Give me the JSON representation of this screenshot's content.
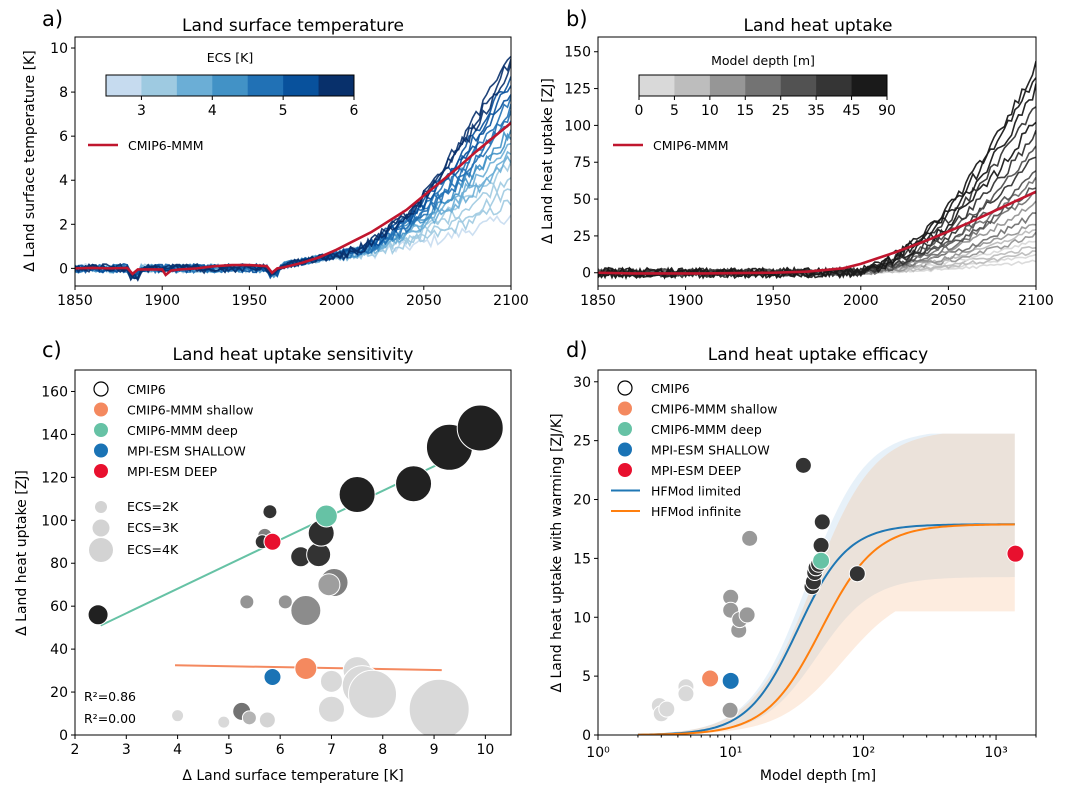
{
  "chart_data": [
    {
      "panel": "a)",
      "type": "line",
      "title": "Land surface temperature",
      "xlabel": "",
      "ylabel": "Δ Land surface temperature [K]",
      "xlim": [
        1850,
        2100
      ],
      "ylim": [
        -0.8,
        10.5
      ],
      "xticks": [
        1850,
        1900,
        1950,
        2000,
        2050,
        2100
      ],
      "yticks": [
        0,
        2,
        4,
        6,
        8,
        10
      ],
      "colorbar": {
        "title": "ECS [K]",
        "ticks": [
          "3",
          "4",
          "5",
          "6"
        ],
        "range": [
          2.5,
          6
        ],
        "colors": [
          "#c6dbef",
          "#9ecae1",
          "#6baed6",
          "#4292c6",
          "#2171b5",
          "#08519c",
          "#08306b"
        ]
      },
      "legend": [
        "CMIP6-MMM"
      ],
      "mmm_color": "#c0162e",
      "mmm": {
        "x": [
          1850,
          1860,
          1870,
          1880,
          1883,
          1886,
          1890,
          1900,
          1902,
          1905,
          1910,
          1920,
          1930,
          1940,
          1950,
          1960,
          1963,
          1966,
          1970,
          1980,
          1990,
          2000,
          2010,
          2020,
          2030,
          2040,
          2050,
          2060,
          2070,
          2080,
          2090,
          2100
        ],
        "y": [
          0,
          0.02,
          0,
          0.02,
          -0.25,
          -0.05,
          -0.05,
          -0.05,
          -0.3,
          -0.1,
          -0.05,
          0,
          0.1,
          0.15,
          0.15,
          0.1,
          -0.2,
          0,
          0.05,
          0.25,
          0.5,
          0.85,
          1.25,
          1.65,
          2.15,
          2.65,
          3.3,
          3.95,
          4.6,
          5.3,
          5.95,
          6.6
        ]
      },
      "models_final_values": [
        2.4,
        3.0,
        3.6,
        4.2,
        4.7,
        5.0,
        5.3,
        5.6,
        6.0,
        6.3,
        6.7,
        7.0,
        7.3,
        7.7,
        8.1,
        8.5,
        8.8,
        9.2,
        9.5,
        9.8
      ],
      "models_ecs": [
        2.3,
        2.6,
        2.8,
        3.0,
        3.1,
        3.3,
        3.5,
        3.7,
        4.0,
        4.2,
        4.4,
        4.6,
        4.8,
        5.0,
        5.2,
        5.4,
        5.5,
        5.7,
        5.8,
        5.9
      ]
    },
    {
      "panel": "b)",
      "type": "line",
      "title": "Land heat uptake",
      "xlabel": "",
      "ylabel": "Δ Land heat uptake [ZJ]",
      "xlim": [
        1850,
        2100
      ],
      "ylim": [
        -9,
        160
      ],
      "xticks": [
        1850,
        1900,
        1950,
        2000,
        2050,
        2100
      ],
      "yticks": [
        0,
        25,
        50,
        75,
        100,
        125,
        150
      ],
      "colorbar": {
        "title": "Model depth [m]",
        "ticks": [
          "0",
          "5",
          "10",
          "15",
          "25",
          "35",
          "45",
          "90"
        ],
        "colors": [
          "#d9d9d9",
          "#bdbdbd",
          "#969696",
          "#737373",
          "#525252",
          "#353535",
          "#1a1a1a"
        ]
      },
      "legend": [
        "CMIP6-MMM"
      ],
      "mmm_color": "#c0162e",
      "mmm": {
        "x": [
          1850,
          1870,
          1890,
          1910,
          1930,
          1950,
          1970,
          1990,
          2000,
          2010,
          2020,
          2030,
          2040,
          2050,
          2060,
          2070,
          2080,
          2090,
          2100
        ],
        "y": [
          0,
          -0.5,
          -0.5,
          -0.5,
          -0.2,
          0,
          0.8,
          3,
          6,
          10,
          14,
          18.5,
          23,
          28,
          33,
          38.5,
          44,
          49.5,
          55
        ]
      },
      "models_final_values": [
        8,
        12,
        14,
        18,
        22,
        26,
        30,
        34,
        40,
        48,
        55,
        60,
        65,
        70,
        80,
        85,
        95,
        105,
        115,
        125,
        135,
        142
      ],
      "models_depth_class": [
        0,
        0,
        1,
        1,
        0,
        2,
        1,
        2,
        3,
        2,
        3,
        4,
        3,
        4,
        5,
        4,
        5,
        6,
        5,
        6,
        6,
        6
      ]
    },
    {
      "panel": "c)",
      "type": "scatter",
      "title": "Land heat uptake sensitivity",
      "xlabel": "Δ Land surface temperature [K]",
      "ylabel": "Δ Land heat uptake [ZJ]",
      "xlim": [
        2,
        10.5
      ],
      "ylim": [
        0,
        170
      ],
      "xticks": [
        2,
        3,
        4,
        5,
        6,
        7,
        8,
        9,
        10
      ],
      "yticks": [
        0,
        20,
        40,
        60,
        80,
        100,
        120,
        140,
        160
      ],
      "legend": [
        "CMIP6",
        "CMIP6-MMM shallow",
        "CMIP6-MMM deep",
        "MPI-ESM SHALLOW",
        "MPI-ESM DEEP"
      ],
      "size_legend": [
        "ECS=2K",
        "ECS=3K",
        "ECS=4K"
      ],
      "colors": {
        "shallow": "#f4895f",
        "deep": "#66c2a5",
        "mpi_shallow": "#1a73b5",
        "mpi_deep": "#e8102e"
      },
      "points": [
        {
          "x": 2.45,
          "y": 56,
          "s": 10,
          "g": 0.13
        },
        {
          "x": 5.8,
          "y": 104,
          "s": 7,
          "g": 0.2
        },
        {
          "x": 5.7,
          "y": 93,
          "s": 7,
          "g": 0.5
        },
        {
          "x": 5.65,
          "y": 90,
          "s": 7,
          "g": 0.2
        },
        {
          "x": 6.4,
          "y": 83,
          "s": 10,
          "g": 0.2
        },
        {
          "x": 6.75,
          "y": 84,
          "s": 12,
          "g": 0.2
        },
        {
          "x": 6.8,
          "y": 94,
          "s": 13,
          "g": 0.18
        },
        {
          "x": 7.5,
          "y": 112,
          "s": 18,
          "g": 0.13
        },
        {
          "x": 8.6,
          "y": 117,
          "s": 18,
          "g": 0.13
        },
        {
          "x": 9.3,
          "y": 134,
          "s": 23,
          "g": 0.13
        },
        {
          "x": 9.9,
          "y": 143,
          "s": 23,
          "g": 0.13
        },
        {
          "x": 7.05,
          "y": 71,
          "s": 14,
          "g": 0.5
        },
        {
          "x": 6.95,
          "y": 70,
          "s": 11,
          "g": 0.62
        },
        {
          "x": 6.5,
          "y": 58,
          "s": 15,
          "g": 0.55
        },
        {
          "x": 6.1,
          "y": 62,
          "s": 7,
          "g": 0.58
        },
        {
          "x": 5.35,
          "y": 62,
          "s": 7,
          "g": 0.58
        },
        {
          "x": 5.25,
          "y": 11,
          "s": 9,
          "g": 0.45
        },
        {
          "x": 5.4,
          "y": 8,
          "s": 7,
          "g": 0.7
        },
        {
          "x": 5.75,
          "y": 7,
          "s": 8,
          "g": 0.83
        },
        {
          "x": 4.9,
          "y": 6,
          "s": 6,
          "g": 0.85
        },
        {
          "x": 4.0,
          "y": 9,
          "s": 6,
          "g": 0.85
        },
        {
          "x": 7.0,
          "y": 25,
          "s": 11,
          "g": 0.85
        },
        {
          "x": 7.0,
          "y": 12,
          "s": 13,
          "g": 0.85
        },
        {
          "x": 7.5,
          "y": 30,
          "s": 14,
          "g": 0.85
        },
        {
          "x": 7.6,
          "y": 23,
          "s": 20,
          "g": 0.85
        },
        {
          "x": 7.8,
          "y": 19,
          "s": 24,
          "g": 0.85
        },
        {
          "x": 9.1,
          "y": 12,
          "s": 30,
          "g": 0.85
        }
      ],
      "mmm_shallow": {
        "x": 6.5,
        "y": 31
      },
      "mmm_deep": {
        "x": 6.9,
        "y": 102
      },
      "mpi_shallow": {
        "x": 5.85,
        "y": 27
      },
      "mpi_deep": {
        "x": 5.85,
        "y": 90
      },
      "fit_deep": {
        "x": [
          2.5,
          9.95
        ],
        "y": [
          51,
          136
        ]
      },
      "fit_shallow": {
        "x": [
          3.95,
          9.15
        ],
        "y": [
          32.5,
          30.2
        ]
      },
      "r2_deep": "R²=0.86",
      "r2_shallow": "R²=0.00"
    },
    {
      "panel": "d)",
      "type": "scatter",
      "title": "Land heat uptake efficacy",
      "xlabel": "Model depth [m]",
      "ylabel": "Δ Land heat uptake with warming [ZJ/K]",
      "xscale": "log",
      "xlim": [
        1,
        2000
      ],
      "ylim": [
        0,
        31
      ],
      "xticks": [
        "10⁰",
        "10¹",
        "10²",
        "10³"
      ],
      "yticks": [
        0,
        5,
        10,
        15,
        20,
        25,
        30
      ],
      "legend": [
        "CMIP6",
        "CMIP6-MMM shallow",
        "CMIP6-MMM deep",
        "MPI-ESM SHALLOW",
        "MPI-ESM DEEP",
        "HFMod limited",
        "HFMod infinite"
      ],
      "colors": {
        "limited": "#1f77b4",
        "infinite": "#ff7f0e",
        "shallow": "#f4895f",
        "deep": "#66c2a5",
        "mpi_shallow": "#1a73b5",
        "mpi_deep": "#e8102e"
      },
      "points": [
        {
          "x": 2.9,
          "y": 2.5,
          "g": 0.85
        },
        {
          "x": 3.0,
          "y": 1.8,
          "g": 0.85
        },
        {
          "x": 3.3,
          "y": 2.2,
          "g": 0.85
        },
        {
          "x": 4.6,
          "y": 4.1,
          "g": 0.85
        },
        {
          "x": 4.6,
          "y": 3.5,
          "g": 0.85
        },
        {
          "x": 7.0,
          "y": 4.8,
          "g": 0.85
        },
        {
          "x": 9.9,
          "y": 2.1,
          "g": 0.6
        },
        {
          "x": 10.0,
          "y": 11.7,
          "g": 0.6
        },
        {
          "x": 10.0,
          "y": 10.6,
          "g": 0.6
        },
        {
          "x": 11.5,
          "y": 8.9,
          "g": 0.6
        },
        {
          "x": 11.7,
          "y": 9.8,
          "g": 0.6
        },
        {
          "x": 13.3,
          "y": 10.2,
          "g": 0.6
        },
        {
          "x": 13.9,
          "y": 16.7,
          "g": 0.6
        },
        {
          "x": 35.3,
          "y": 22.9,
          "g": 0.2
        },
        {
          "x": 41.0,
          "y": 12.6,
          "g": 0.2
        },
        {
          "x": 42.0,
          "y": 13.0,
          "g": 0.2
        },
        {
          "x": 43.0,
          "y": 13.8,
          "g": 0.2
        },
        {
          "x": 44.0,
          "y": 14.2,
          "g": 0.2
        },
        {
          "x": 46.0,
          "y": 14.5,
          "g": 0.2
        },
        {
          "x": 48.0,
          "y": 16.1,
          "g": 0.2
        },
        {
          "x": 49.0,
          "y": 18.1,
          "g": 0.2
        },
        {
          "x": 90.0,
          "y": 13.7,
          "g": 0.2
        }
      ],
      "mmm_shallow": {
        "x": 7.0,
        "y": 4.8
      },
      "mmm_deep": {
        "x": 48.0,
        "y": 14.8
      },
      "mpi_shallow": {
        "x": 10.0,
        "y": 4.6
      },
      "mpi_deep": {
        "x": 1400,
        "y": 15.4
      },
      "plateau": 17.9,
      "band_upper": 25.6,
      "band_lower": 10.5
    }
  ]
}
